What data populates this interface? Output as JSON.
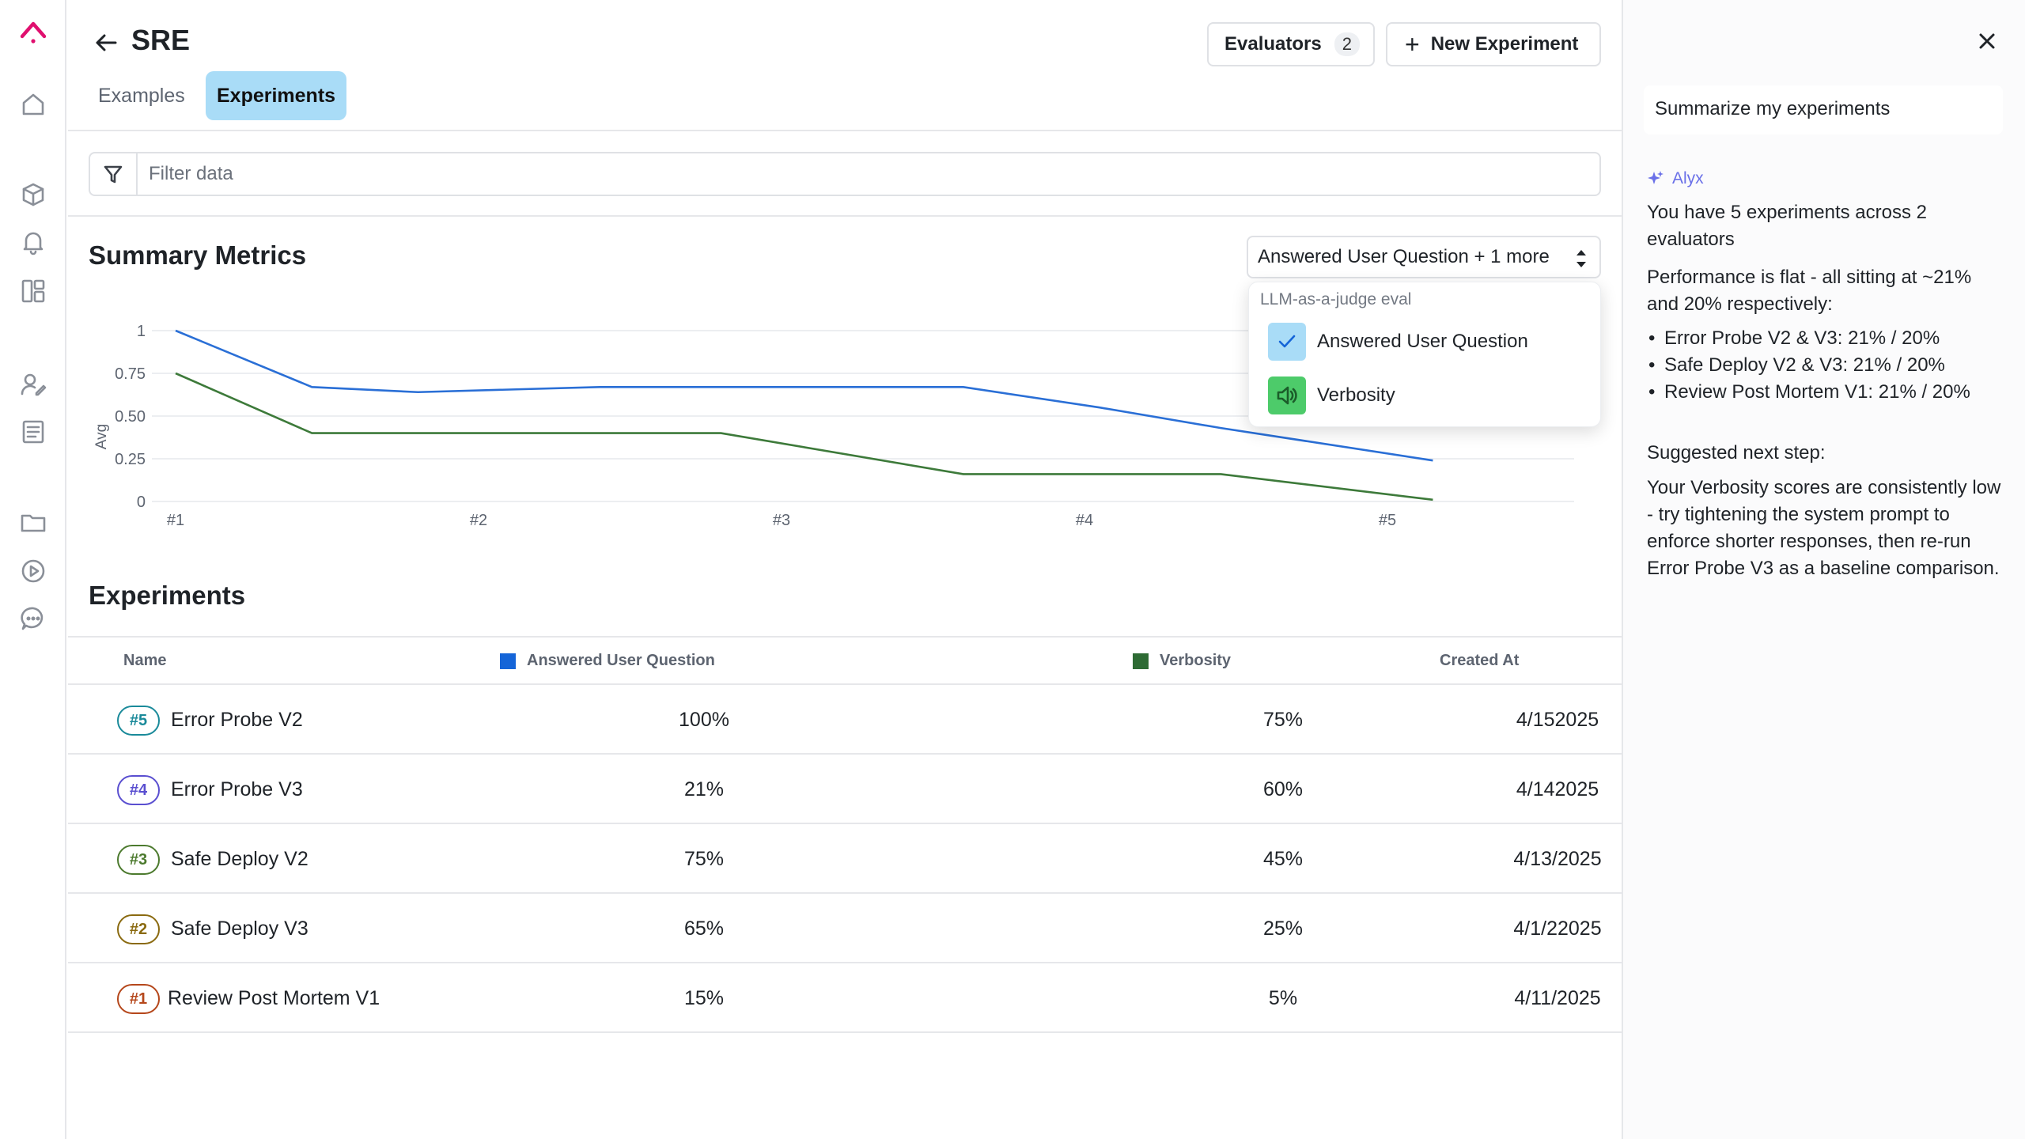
{
  "app": {
    "logo": "brand-logo",
    "accent": "#e0106f"
  },
  "rail": {
    "icons": [
      "home-icon",
      "cube-icon",
      "bell-icon",
      "layout-icon",
      "user-edit-icon",
      "document-icon",
      "folder-icon",
      "play-icon",
      "chat-icon"
    ]
  },
  "header": {
    "title": "SRE",
    "tabs": [
      "Examples",
      "Experiments"
    ],
    "active_tab": "Experiments",
    "evaluators_label": "Evaluators",
    "evaluators_count": "2",
    "new_experiment_label": "New Experiment"
  },
  "filter": {
    "placeholder": "Filter data"
  },
  "summary": {
    "title": "Summary Metrics",
    "selector_label": "Answered User Question + 1 more",
    "dropdown": {
      "group": "LLM-as-a-judge eval",
      "options": [
        {
          "label": "Answered User Question",
          "checked": true,
          "color": "#a9dcf7",
          "icon": "check-icon"
        },
        {
          "label": "Verbosity",
          "checked": true,
          "color": "#4dcb6a",
          "icon": "speaker-icon"
        }
      ]
    }
  },
  "chart_data": {
    "type": "line",
    "categories": [
      "#1",
      "#2",
      "#3",
      "#4",
      "#5"
    ],
    "ylabel": "Avg",
    "yticks": [
      "1",
      "0.75",
      "0.50",
      "0.25",
      "0"
    ],
    "ylim": [
      0,
      1
    ],
    "legend": "none",
    "series": [
      {
        "name": "Answered User Question",
        "color": "#2a6fd6",
        "x": [
          1,
          1.45,
          1.8,
          2.4,
          2.8,
          3.6,
          4.05,
          4.45,
          5.15
        ],
        "values": [
          1.0,
          0.67,
          0.64,
          0.67,
          0.67,
          0.67,
          0.55,
          0.43,
          0.24
        ]
      },
      {
        "name": "Verbosity",
        "color": "#3d7a3a",
        "x": [
          1,
          1.45,
          1.8,
          2.4,
          2.8,
          3.6,
          4.05,
          4.45,
          5.15
        ],
        "values": [
          0.75,
          0.4,
          0.4,
          0.4,
          0.4,
          0.16,
          0.16,
          0.16,
          0.01
        ]
      }
    ]
  },
  "experiments": {
    "title": "Experiments",
    "columns": {
      "name": "Name",
      "answered": "Answered User Question",
      "answered_color": "#1565d8",
      "verbosity": "Verbosity",
      "verbosity_color": "#2e6b34",
      "created": "Created At"
    },
    "rows": [
      {
        "badge": "#5",
        "badge_color": "#1a8a9a",
        "name": "Error Probe V2",
        "answered": "100%",
        "verbosity": "75%",
        "created": "4/152025"
      },
      {
        "badge": "#4",
        "badge_color": "#5a4fd0",
        "name": "Error Probe V3",
        "answered": "21%",
        "verbosity": "60%",
        "created": "4/142025"
      },
      {
        "badge": "#3",
        "badge_color": "#4c7a2e",
        "name": "Safe Deploy V2",
        "answered": "75%",
        "verbosity": "45%",
        "created": "4/13/2025"
      },
      {
        "badge": "#2",
        "badge_color": "#8a6a10",
        "name": "Safe Deploy V3",
        "answered": "65%",
        "verbosity": "25%",
        "created": "4/1/22025"
      },
      {
        "badge": "#1",
        "badge_color": "#b5471b",
        "name": "Review Post Mortem V1",
        "answered": "15%",
        "verbosity": "5%",
        "created": "4/11/2025"
      }
    ]
  },
  "assistant": {
    "prompt": "Summarize my experiments",
    "name": "Alyx",
    "intro": "You have 5 experiments across 2 evaluators",
    "performance": "Performance is flat - all sitting at ~21% and 20% respectively:",
    "bullets": [
      "Error Probe V2 & V3: 21% / 20%",
      "Safe Deploy V2 & V3: 21% / 20%",
      "Review Post Mortem V1: 21% / 20%"
    ],
    "next_heading": "Suggested next step:",
    "next_body": "Your Verbosity scores are consistently low - try tightening the system prompt to enforce shorter responses, then re-run Error Probe V3 as a baseline comparison."
  }
}
